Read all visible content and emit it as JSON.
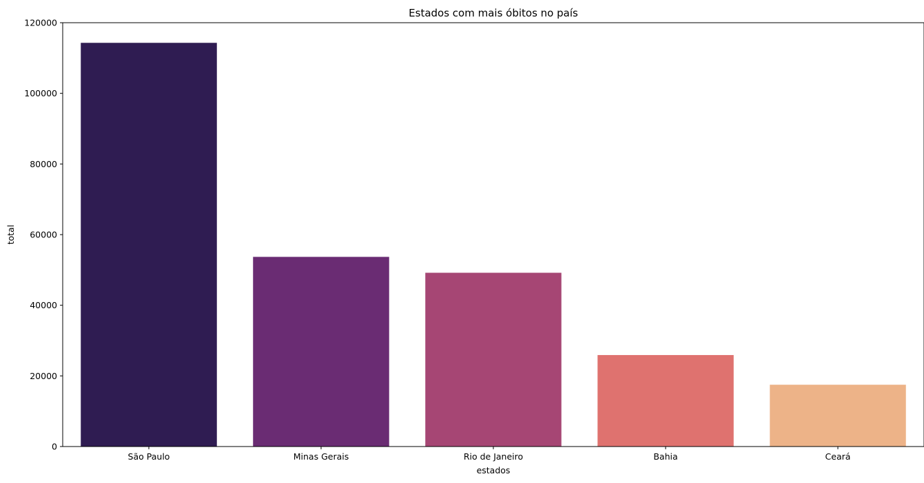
{
  "chart_data": {
    "type": "bar",
    "title": "Estados com mais óbitos no país",
    "xlabel": "estados",
    "ylabel": "total",
    "categories": [
      "São Paulo",
      "Minas Gerais",
      "Rio de Janeiro",
      "Bahia",
      "Ceará"
    ],
    "values": [
      114300,
      53700,
      49200,
      25900,
      17500
    ],
    "ylim": [
      0,
      120000
    ],
    "yticks": [
      0,
      20000,
      40000,
      60000,
      80000,
      100000,
      120000
    ],
    "colors": [
      "#2f1c52",
      "#6a2c73",
      "#a64674",
      "#df726f",
      "#edb388"
    ],
    "grid": false,
    "legend": "none"
  }
}
